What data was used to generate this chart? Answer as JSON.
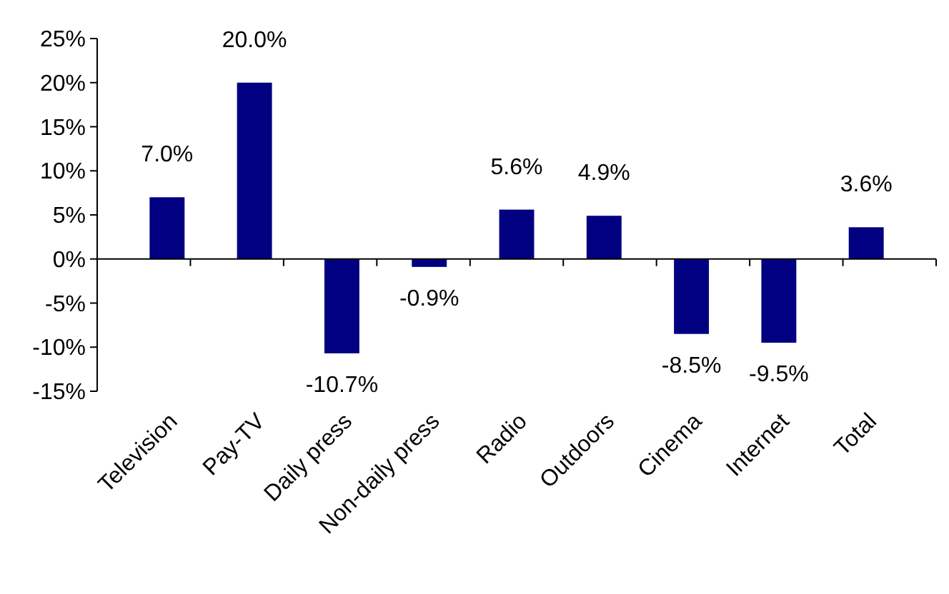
{
  "chart_data": {
    "type": "bar",
    "categories": [
      "Television",
      "Pay-TV",
      "Daily press",
      "Non-daily press",
      "Radio",
      "Outdoors",
      "Cinema",
      "Internet",
      "Total"
    ],
    "values": [
      7.0,
      20.0,
      -10.7,
      -0.9,
      5.6,
      4.9,
      -8.5,
      -9.5,
      3.6
    ],
    "value_labels": [
      "7.0%",
      "20.0%",
      "-10.7%",
      "-0.9%",
      "5.6%",
      "4.9%",
      "-8.5%",
      "-9.5%",
      "3.6%"
    ],
    "color": "#000080",
    "ylim": [
      -15,
      25
    ],
    "yticks": [
      {
        "value": -15,
        "label": "-15%"
      },
      {
        "value": -10,
        "label": "-10%"
      },
      {
        "value": -5,
        "label": "-5%"
      },
      {
        "value": 0,
        "label": "0%"
      },
      {
        "value": 5,
        "label": "5%"
      },
      {
        "value": 10,
        "label": "10%"
      },
      {
        "value": 15,
        "label": "15%"
      },
      {
        "value": 20,
        "label": "20%"
      },
      {
        "value": 25,
        "label": "25%"
      }
    ]
  }
}
